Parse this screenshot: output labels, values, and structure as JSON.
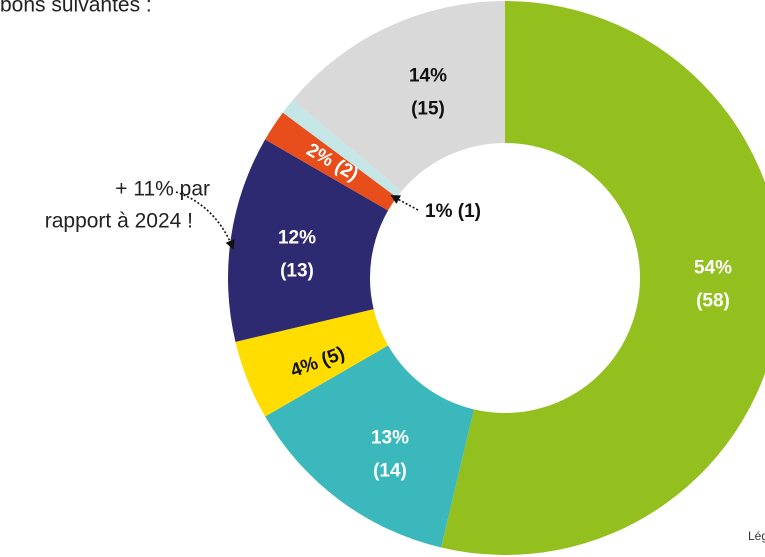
{
  "chart_data": {
    "type": "donut",
    "subtitle": "bons suivantes :",
    "values": [
      58,
      14,
      5,
      13,
      2,
      1,
      15
    ],
    "value_labels": [
      [
        "54%",
        "(58)"
      ],
      [
        "13%",
        "(14)"
      ],
      [
        "4% (5)"
      ],
      [
        "12%",
        "(13)"
      ],
      [
        "2% (2)"
      ],
      [
        "1% (1)"
      ],
      [
        "14%",
        "(15)"
      ]
    ],
    "colors": [
      "#93c01f",
      "#3bb8bb",
      "#ffdd00",
      "#2e2a72",
      "#e84e1b",
      "#c5e6e6",
      "#d9d9d9"
    ],
    "annotation": [
      "+ 11% par",
      "rapport à 2024 !"
    ],
    "legend_title": "Lég"
  }
}
